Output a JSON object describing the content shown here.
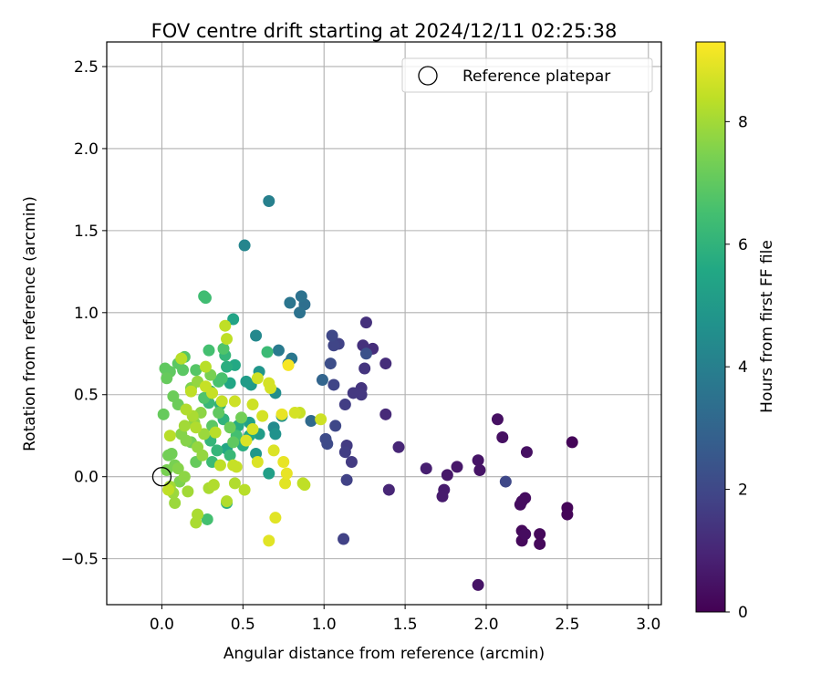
{
  "chart_data": {
    "type": "scatter",
    "title": "FOV centre drift starting at 2024/12/11 02:25:38",
    "xlabel": "Angular distance from reference (arcmin)",
    "ylabel": "Rotation from reference (arcmin)",
    "xlim": [
      -0.34,
      3.08
    ],
    "ylim": [
      -0.78,
      2.65
    ],
    "xticks": [
      "0.0",
      "0.5",
      "1.0",
      "1.5",
      "2.0",
      "2.5",
      "3.0"
    ],
    "xtick_values": [
      0.0,
      0.5,
      1.0,
      1.5,
      2.0,
      2.5,
      3.0
    ],
    "yticks": [
      "−0.5",
      "0.0",
      "0.5",
      "1.0",
      "1.5",
      "2.0",
      "2.5"
    ],
    "ytick_values": [
      -0.5,
      0.0,
      0.5,
      1.0,
      1.5,
      2.0,
      2.5
    ],
    "grid": true,
    "legend": {
      "position": "top-right",
      "entries": [
        {
          "label": "Reference platepar",
          "marker": "open-circle"
        }
      ]
    },
    "reference_point": {
      "x": 0.0,
      "y": 0.0
    },
    "colorbar": {
      "label": "Hours from first FF file",
      "colormap": "viridis",
      "min": 0,
      "max": 9.3,
      "ticks": [
        "0",
        "2",
        "4",
        "6",
        "8"
      ],
      "tick_values": [
        0,
        2,
        4,
        6,
        8
      ]
    },
    "points": [
      {
        "x": 2.53,
        "y": 0.21,
        "c": 0.1
      },
      {
        "x": 2.5,
        "y": -0.19,
        "c": 0.1
      },
      {
        "x": 2.5,
        "y": -0.23,
        "c": 0.1
      },
      {
        "x": 2.33,
        "y": -0.35,
        "c": 0.2
      },
      {
        "x": 2.33,
        "y": -0.41,
        "c": 0.2
      },
      {
        "x": 2.22,
        "y": -0.33,
        "c": 0.2
      },
      {
        "x": 2.22,
        "y": -0.39,
        "c": 0.2
      },
      {
        "x": 2.24,
        "y": -0.35,
        "c": 0.3
      },
      {
        "x": 2.24,
        "y": -0.13,
        "c": 0.3
      },
      {
        "x": 2.22,
        "y": -0.15,
        "c": 0.3
      },
      {
        "x": 2.21,
        "y": -0.17,
        "c": 0.3
      },
      {
        "x": 2.25,
        "y": 0.15,
        "c": 0.4
      },
      {
        "x": 2.1,
        "y": 0.24,
        "c": 0.4
      },
      {
        "x": 2.07,
        "y": 0.35,
        "c": 0.4
      },
      {
        "x": 1.95,
        "y": 0.1,
        "c": 0.5
      },
      {
        "x": 1.96,
        "y": 0.04,
        "c": 0.5
      },
      {
        "x": 1.95,
        "y": -0.66,
        "c": 0.5
      },
      {
        "x": 1.82,
        "y": 0.06,
        "c": 0.6
      },
      {
        "x": 1.76,
        "y": 0.01,
        "c": 0.6
      },
      {
        "x": 1.74,
        "y": -0.08,
        "c": 0.7
      },
      {
        "x": 1.73,
        "y": -0.12,
        "c": 0.7
      },
      {
        "x": 1.63,
        "y": 0.05,
        "c": 0.8
      },
      {
        "x": 2.12,
        "y": -0.03,
        "c": 2.0
      },
      {
        "x": 1.46,
        "y": 0.18,
        "c": 1.0
      },
      {
        "x": 1.4,
        "y": -0.08,
        "c": 1.0
      },
      {
        "x": 1.38,
        "y": 0.38,
        "c": 1.1
      },
      {
        "x": 1.38,
        "y": 0.69,
        "c": 1.2
      },
      {
        "x": 1.3,
        "y": 0.78,
        "c": 1.2
      },
      {
        "x": 1.26,
        "y": 0.94,
        "c": 1.3
      },
      {
        "x": 1.24,
        "y": 0.8,
        "c": 1.3
      },
      {
        "x": 1.25,
        "y": 0.66,
        "c": 1.4
      },
      {
        "x": 1.23,
        "y": 0.54,
        "c": 1.4
      },
      {
        "x": 1.23,
        "y": 0.5,
        "c": 1.5
      },
      {
        "x": 1.18,
        "y": 0.51,
        "c": 1.5
      },
      {
        "x": 1.17,
        "y": 0.09,
        "c": 1.6
      },
      {
        "x": 1.14,
        "y": 0.19,
        "c": 1.6
      },
      {
        "x": 1.13,
        "y": 0.15,
        "c": 1.7
      },
      {
        "x": 1.13,
        "y": 0.44,
        "c": 1.7
      },
      {
        "x": 1.12,
        "y": -0.38,
        "c": 1.8
      },
      {
        "x": 1.14,
        "y": -0.02,
        "c": 1.8
      },
      {
        "x": 1.09,
        "y": 0.81,
        "c": 1.8
      },
      {
        "x": 1.06,
        "y": 0.8,
        "c": 1.9
      },
      {
        "x": 1.06,
        "y": 0.56,
        "c": 1.9
      },
      {
        "x": 1.05,
        "y": 0.86,
        "c": 2.0
      },
      {
        "x": 1.07,
        "y": 0.31,
        "c": 2.0
      },
      {
        "x": 1.02,
        "y": 0.2,
        "c": 2.1
      },
      {
        "x": 1.01,
        "y": 0.23,
        "c": 2.1
      },
      {
        "x": 1.04,
        "y": 0.69,
        "c": 2.2
      },
      {
        "x": 1.26,
        "y": 0.75,
        "c": 2.3
      },
      {
        "x": 0.99,
        "y": 0.59,
        "c": 3.0
      },
      {
        "x": 0.92,
        "y": 0.34,
        "c": 3.2
      },
      {
        "x": 0.88,
        "y": 1.05,
        "c": 3.4
      },
      {
        "x": 0.86,
        "y": 1.1,
        "c": 3.5
      },
      {
        "x": 0.85,
        "y": 1.0,
        "c": 3.5
      },
      {
        "x": 0.79,
        "y": 1.06,
        "c": 3.6
      },
      {
        "x": 0.78,
        "y": 0.69,
        "c": 3.6
      },
      {
        "x": 0.8,
        "y": 0.72,
        "c": 3.7
      },
      {
        "x": 0.72,
        "y": 0.77,
        "c": 3.8
      },
      {
        "x": 0.66,
        "y": 1.68,
        "c": 4.0
      },
      {
        "x": 0.51,
        "y": 1.41,
        "c": 4.2
      },
      {
        "x": 0.58,
        "y": 0.86,
        "c": 4.3
      },
      {
        "x": 0.69,
        "y": 0.3,
        "c": 4.4
      },
      {
        "x": 0.7,
        "y": 0.51,
        "c": 4.5
      },
      {
        "x": 0.74,
        "y": 0.37,
        "c": 4.6
      },
      {
        "x": 0.7,
        "y": 0.26,
        "c": 4.7
      },
      {
        "x": 0.6,
        "y": 0.64,
        "c": 4.8
      },
      {
        "x": 0.58,
        "y": 0.14,
        "c": 4.9
      },
      {
        "x": 0.55,
        "y": 0.56,
        "c": 5.0
      },
      {
        "x": 0.52,
        "y": 0.58,
        "c": 5.1
      },
      {
        "x": 0.66,
        "y": 0.02,
        "c": 5.2
      },
      {
        "x": 0.54,
        "y": 0.33,
        "c": 5.3
      },
      {
        "x": 0.44,
        "y": 0.96,
        "c": 5.4
      },
      {
        "x": 0.42,
        "y": 0.57,
        "c": 5.5
      },
      {
        "x": 0.45,
        "y": 0.68,
        "c": 5.6
      },
      {
        "x": 0.47,
        "y": 0.31,
        "c": 5.7
      },
      {
        "x": 0.5,
        "y": 0.19,
        "c": 5.8
      },
      {
        "x": 0.4,
        "y": -0.16,
        "c": 5.9
      },
      {
        "x": 0.36,
        "y": 0.44,
        "c": 6.0
      },
      {
        "x": 0.38,
        "y": 0.35,
        "c": 6.0
      },
      {
        "x": 0.3,
        "y": 0.22,
        "c": 6.1
      },
      {
        "x": 0.34,
        "y": 0.16,
        "c": 6.1
      },
      {
        "x": 0.42,
        "y": 0.13,
        "c": 6.2
      },
      {
        "x": 0.31,
        "y": 0.09,
        "c": 6.3
      },
      {
        "x": 0.27,
        "y": 1.09,
        "c": 6.4
      },
      {
        "x": 0.26,
        "y": 1.1,
        "c": 6.4
      },
      {
        "x": 0.28,
        "y": -0.26,
        "c": 6.5
      },
      {
        "x": 0.29,
        "y": 0.77,
        "c": 6.5
      },
      {
        "x": 0.37,
        "y": 0.6,
        "c": 6.6
      },
      {
        "x": 0.35,
        "y": 0.58,
        "c": 6.6
      },
      {
        "x": 0.38,
        "y": 0.78,
        "c": 6.7
      },
      {
        "x": 0.26,
        "y": 0.48,
        "c": 6.7
      },
      {
        "x": 0.21,
        "y": 0.65,
        "c": 6.8
      },
      {
        "x": 0.14,
        "y": 0.73,
        "c": 6.8
      },
      {
        "x": 0.13,
        "y": 0.65,
        "c": 6.9
      },
      {
        "x": 0.1,
        "y": 0.69,
        "c": 6.9
      },
      {
        "x": 0.05,
        "y": 0.64,
        "c": 7.0
      },
      {
        "x": 0.02,
        "y": 0.66,
        "c": 7.0
      },
      {
        "x": 0.03,
        "y": 0.6,
        "c": 7.1
      },
      {
        "x": 0.01,
        "y": 0.38,
        "c": 7.1
      },
      {
        "x": 0.07,
        "y": 0.49,
        "c": 7.2
      },
      {
        "x": 0.1,
        "y": 0.44,
        "c": 7.2
      },
      {
        "x": 0.06,
        "y": 0.14,
        "c": 7.3
      },
      {
        "x": 0.04,
        "y": 0.13,
        "c": 7.3
      },
      {
        "x": 0.03,
        "y": 0.04,
        "c": 7.4
      },
      {
        "x": 0.08,
        "y": 0.07,
        "c": 7.4
      },
      {
        "x": 0.11,
        "y": -0.03,
        "c": 7.5
      },
      {
        "x": 0.65,
        "y": 0.76,
        "c": 6.3
      },
      {
        "x": 0.18,
        "y": 0.54,
        "c": 7.5
      },
      {
        "x": 0.12,
        "y": 0.26,
        "c": 7.6
      },
      {
        "x": 0.15,
        "y": 0.22,
        "c": 7.6
      },
      {
        "x": 0.2,
        "y": 0.33,
        "c": 7.7
      },
      {
        "x": 0.24,
        "y": 0.39,
        "c": 7.7
      },
      {
        "x": 0.22,
        "y": 0.18,
        "c": 7.8
      },
      {
        "x": 0.25,
        "y": 0.13,
        "c": 7.8
      },
      {
        "x": 0.08,
        "y": -0.16,
        "c": 7.9
      },
      {
        "x": 0.07,
        "y": -0.1,
        "c": 7.9
      },
      {
        "x": 0.05,
        "y": -0.06,
        "c": 8.0
      },
      {
        "x": 0.16,
        "y": -0.09,
        "c": 8.0
      },
      {
        "x": 0.21,
        "y": -0.28,
        "c": 8.1
      },
      {
        "x": 0.22,
        "y": -0.23,
        "c": 8.1
      },
      {
        "x": 0.29,
        "y": -0.07,
        "c": 8.1
      },
      {
        "x": 0.32,
        "y": -0.05,
        "c": 8.2
      },
      {
        "x": 0.4,
        "y": -0.15,
        "c": 8.2
      },
      {
        "x": 0.45,
        "y": -0.04,
        "c": 8.2
      },
      {
        "x": 0.51,
        "y": -0.08,
        "c": 8.3
      },
      {
        "x": 0.12,
        "y": 0.72,
        "c": 8.3
      },
      {
        "x": 0.27,
        "y": 0.67,
        "c": 8.3
      },
      {
        "x": 0.39,
        "y": 0.92,
        "c": 8.4
      },
      {
        "x": 0.4,
        "y": 0.84,
        "c": 8.4
      },
      {
        "x": 0.18,
        "y": 0.52,
        "c": 8.4
      },
      {
        "x": 0.27,
        "y": 0.55,
        "c": 8.5
      },
      {
        "x": 0.31,
        "y": 0.51,
        "c": 8.5
      },
      {
        "x": 0.37,
        "y": 0.46,
        "c": 8.5
      },
      {
        "x": 0.45,
        "y": 0.46,
        "c": 8.6
      },
      {
        "x": 0.56,
        "y": 0.44,
        "c": 8.6
      },
      {
        "x": 0.59,
        "y": 0.6,
        "c": 8.6
      },
      {
        "x": 0.66,
        "y": 0.57,
        "c": 8.7
      },
      {
        "x": 0.67,
        "y": 0.54,
        "c": 8.7
      },
      {
        "x": 0.62,
        "y": 0.37,
        "c": 8.7
      },
      {
        "x": 0.56,
        "y": 0.29,
        "c": 8.7
      },
      {
        "x": 0.52,
        "y": 0.22,
        "c": 8.8
      },
      {
        "x": 0.59,
        "y": 0.09,
        "c": 8.8
      },
      {
        "x": 0.69,
        "y": 0.16,
        "c": 8.8
      },
      {
        "x": 0.66,
        "y": -0.39,
        "c": 8.9
      },
      {
        "x": 0.7,
        "y": -0.25,
        "c": 8.9
      },
      {
        "x": 0.76,
        "y": -0.04,
        "c": 8.9
      },
      {
        "x": 0.77,
        "y": 0.02,
        "c": 9.0
      },
      {
        "x": 0.75,
        "y": 0.09,
        "c": 9.0
      },
      {
        "x": 0.74,
        "y": 0.38,
        "c": 9.0
      },
      {
        "x": 0.85,
        "y": 0.39,
        "c": 8.5
      },
      {
        "x": 0.82,
        "y": 0.39,
        "c": 8.7
      },
      {
        "x": 0.87,
        "y": -0.04,
        "c": 8.4
      },
      {
        "x": 0.88,
        "y": -0.05,
        "c": 8.4
      },
      {
        "x": 0.98,
        "y": 0.35,
        "c": 8.6
      },
      {
        "x": 0.78,
        "y": 0.68,
        "c": 9.2
      },
      {
        "x": 0.19,
        "y": 0.37,
        "c": 8.1
      },
      {
        "x": 0.21,
        "y": 0.3,
        "c": 8.2
      },
      {
        "x": 0.14,
        "y": 0.31,
        "c": 8.0
      },
      {
        "x": 0.33,
        "y": 0.27,
        "c": 8.3
      },
      {
        "x": 0.36,
        "y": 0.07,
        "c": 8.4
      },
      {
        "x": 0.44,
        "y": 0.07,
        "c": 8.5
      },
      {
        "x": 0.46,
        "y": 0.06,
        "c": 8.5
      },
      {
        "x": 0.26,
        "y": 0.26,
        "c": 7.9
      },
      {
        "x": 0.1,
        "y": 0.05,
        "c": 7.6
      },
      {
        "x": 0.14,
        "y": 0.0,
        "c": 7.7
      },
      {
        "x": 0.35,
        "y": 0.39,
        "c": 7.0
      },
      {
        "x": 0.42,
        "y": 0.3,
        "c": 7.2
      },
      {
        "x": 0.49,
        "y": 0.36,
        "c": 7.3
      },
      {
        "x": 0.3,
        "y": 0.62,
        "c": 7.4
      },
      {
        "x": 0.22,
        "y": 0.58,
        "c": 7.8
      },
      {
        "x": 0.15,
        "y": 0.41,
        "c": 8.2
      },
      {
        "x": 0.05,
        "y": 0.25,
        "c": 8.3
      },
      {
        "x": 0.04,
        "y": -0.08,
        "c": 8.4
      },
      {
        "x": 0.29,
        "y": 0.45,
        "c": 6.2
      },
      {
        "x": 0.46,
        "y": 0.25,
        "c": 6.5
      },
      {
        "x": 0.31,
        "y": 0.31,
        "c": 6.9
      },
      {
        "x": 0.44,
        "y": 0.21,
        "c": 7.0
      },
      {
        "x": 0.21,
        "y": 0.09,
        "c": 7.1
      },
      {
        "x": 0.18,
        "y": 0.21,
        "c": 7.3
      },
      {
        "x": 0.4,
        "y": 0.67,
        "c": 5.8
      },
      {
        "x": 0.39,
        "y": 0.74,
        "c": 6.1
      },
      {
        "x": 0.54,
        "y": 0.25,
        "c": 5.6
      },
      {
        "x": 0.4,
        "y": 0.17,
        "c": 5.5
      },
      {
        "x": 0.3,
        "y": 0.52,
        "c": 5.9
      },
      {
        "x": 0.6,
        "y": 0.26,
        "c": 5.1
      }
    ]
  }
}
